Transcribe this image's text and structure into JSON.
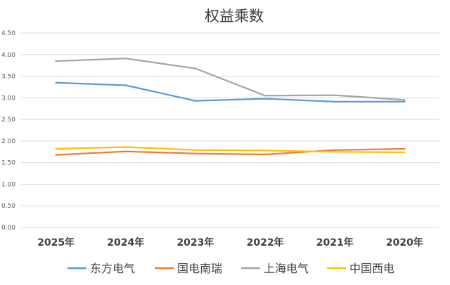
{
  "chart_data": {
    "type": "line",
    "title": "权益乘数",
    "xlabel": "",
    "ylabel": "",
    "categories": [
      "2025年",
      "2024年",
      "2023年",
      "2022年",
      "2021年",
      "2020年"
    ],
    "ylim": [
      0,
      4.5
    ],
    "yticks": [
      "0.00",
      "0.50",
      "1.00",
      "1.50",
      "2.00",
      "2.50",
      "3.00",
      "3.50",
      "4.00",
      "4.50"
    ],
    "grid": true,
    "legend_position": "bottom",
    "series": [
      {
        "name": "东方电气",
        "color": "#5B9BD5",
        "values": [
          3.35,
          3.29,
          2.93,
          2.98,
          2.91,
          2.91
        ]
      },
      {
        "name": "国电南瑞",
        "color": "#ED7D31",
        "values": [
          1.68,
          1.76,
          1.71,
          1.69,
          1.79,
          1.82
        ]
      },
      {
        "name": "上海电气",
        "color": "#A5A5A5",
        "values": [
          3.85,
          3.91,
          3.68,
          3.05,
          3.06,
          2.95
        ]
      },
      {
        "name": "中国西电",
        "color": "#FFC000",
        "values": [
          1.82,
          1.86,
          1.79,
          1.78,
          1.75,
          1.74
        ]
      }
    ]
  }
}
